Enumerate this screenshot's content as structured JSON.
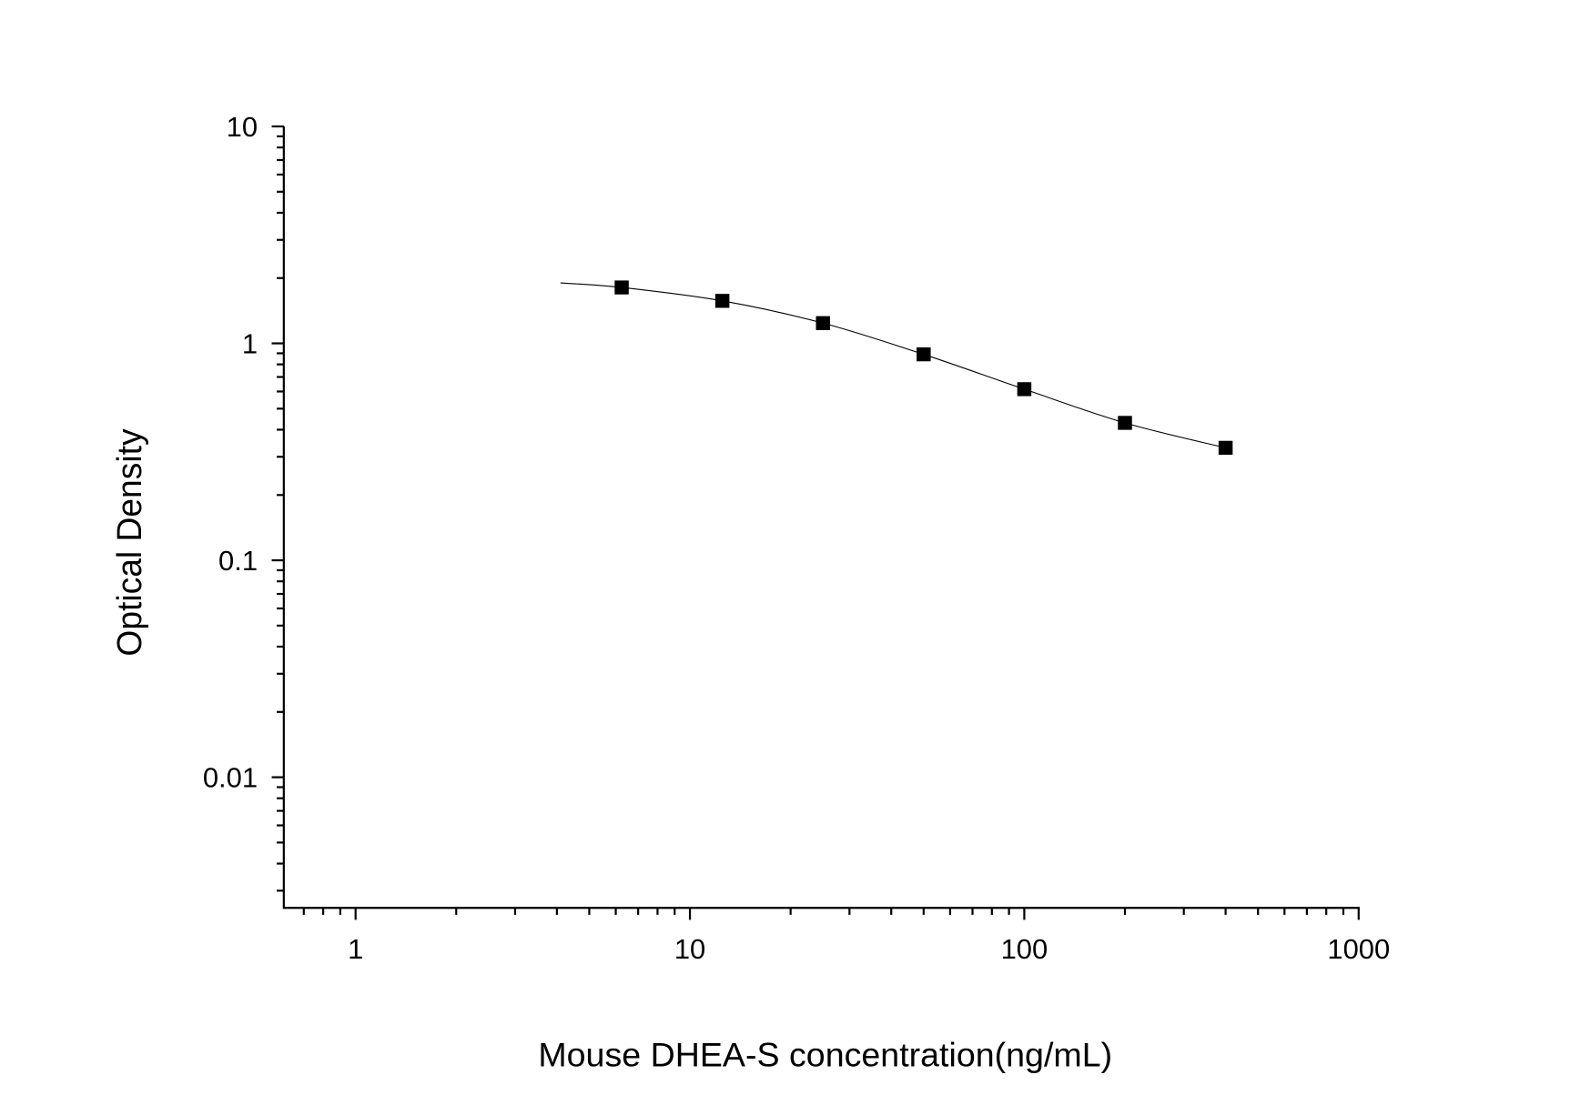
{
  "chart_data": {
    "type": "scatter",
    "title": "",
    "xlabel": "Mouse DHEA-S concentration(ng/mL)",
    "ylabel": "Optical Density",
    "x_scale": "log",
    "y_scale": "log",
    "xlim": [
      0.61,
      1000
    ],
    "ylim": [
      0.0025,
      10
    ],
    "x_ticks": [
      {
        "value": 1,
        "label": "1"
      },
      {
        "value": 10,
        "label": "10"
      },
      {
        "value": 100,
        "label": "100"
      },
      {
        "value": 1000,
        "label": "1000"
      }
    ],
    "y_ticks": [
      {
        "value": 10,
        "label": "10"
      },
      {
        "value": 1,
        "label": "1"
      },
      {
        "value": 0.1,
        "label": "0.1"
      },
      {
        "value": 0.01,
        "label": "0.01"
      }
    ],
    "grid": false,
    "marker": "square",
    "color": "#000000",
    "points": {
      "x": [
        6.25,
        12.5,
        25,
        50,
        100,
        200,
        400
      ],
      "y": [
        1.81,
        1.57,
        1.24,
        0.89,
        0.615,
        0.43,
        0.33
      ]
    },
    "fit_curve": {
      "x_range": [
        4.1,
        400
      ],
      "y_start": 1.9
    }
  }
}
